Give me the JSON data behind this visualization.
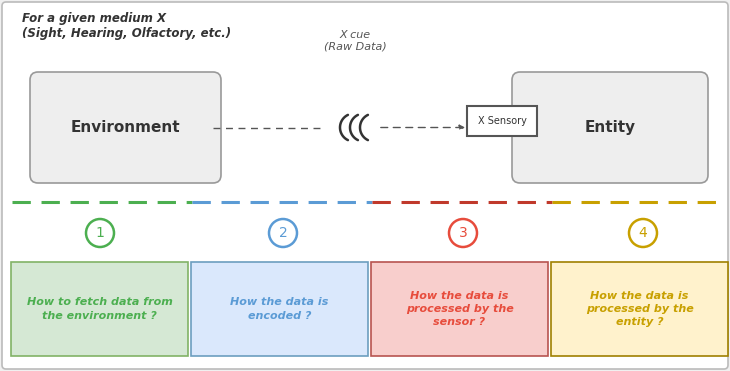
{
  "bg_color": "#f0f0f0",
  "outer_border_color": "#bbbbbb",
  "title_text": "For a given medium X\n(Sight, Hearing, Olfactory, etc.)",
  "cue_label": "X cue\n(Raw Data)",
  "env_label": "Environment",
  "entity_label": "Entity",
  "sensor_label": "X Sensory",
  "divider_colors": [
    "#4caf50",
    "#5b9bd5",
    "#c0392b",
    "#c8a000"
  ],
  "circle_colors": [
    "#4caf50",
    "#5b9bd5",
    "#e74c3c",
    "#c8a000"
  ],
  "circle_labels": [
    "1",
    "2",
    "3",
    "4"
  ],
  "box_fill_colors": [
    "#d5e8d4",
    "#dae8fc",
    "#f8cecc",
    "#fff2cc"
  ],
  "box_border_colors": [
    "#82b366",
    "#6c9ebf",
    "#b85450",
    "#a08000"
  ],
  "box_texts": [
    "How to fetch data from\nthe environment ?",
    "How the data is\nencoded ?",
    "How the data is\nprocessed by the\nsensor ?",
    "How the data is\nprocessed by the\nentity ?"
  ],
  "box_text_colors": [
    "#4caf50",
    "#5b9bd5",
    "#e74c3c",
    "#c8a000"
  ],
  "arrow_color": "#555555",
  "wave_color": "#333333",
  "box_label_color": "#555555"
}
